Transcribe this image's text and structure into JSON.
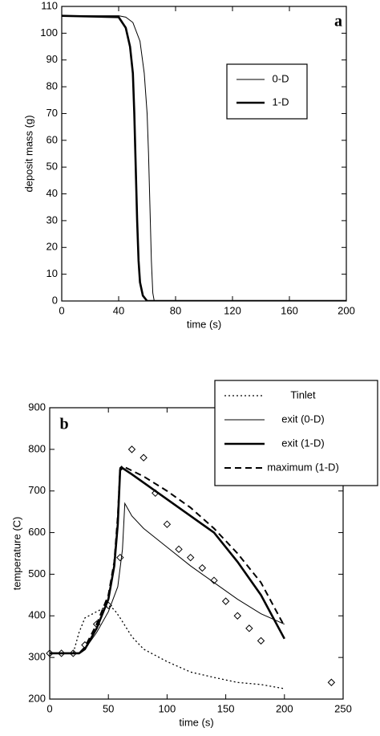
{
  "chart_data": [
    {
      "type": "line",
      "label": "a",
      "xlabel": "time (s)",
      "ylabel": "deposit mass (g)",
      "xlim": [
        0,
        200
      ],
      "xticks": [
        0,
        40,
        80,
        120,
        160,
        200
      ],
      "ylim": [
        0,
        110
      ],
      "yticks": [
        0,
        10,
        20,
        30,
        40,
        50,
        60,
        70,
        80,
        90,
        100,
        110
      ],
      "legend": "upper right",
      "series": [
        {
          "name": "0-D",
          "color": "#000000",
          "width": 1,
          "dash": "solid",
          "x": [
            0,
            40,
            45,
            50,
            55,
            58,
            60,
            61,
            62,
            63,
            64,
            65,
            200
          ],
          "values": [
            106.5,
            106.5,
            106,
            104,
            97,
            85,
            70,
            55,
            35,
            15,
            3,
            0,
            0
          ]
        },
        {
          "name": "1-D",
          "color": "#000000",
          "width": 2.6,
          "dash": "solid",
          "x": [
            0,
            40,
            45,
            48,
            50,
            51,
            52,
            53,
            54,
            55,
            57,
            60,
            200
          ],
          "values": [
            106.5,
            106,
            102,
            95,
            85,
            70,
            50,
            30,
            15,
            7,
            2,
            0,
            0
          ]
        }
      ]
    },
    {
      "type": "line",
      "label": "b",
      "xlabel": "time (s)",
      "ylabel": "temperature (C)",
      "xlim": [
        0,
        250
      ],
      "xticks": [
        0,
        50,
        100,
        150,
        200,
        250
      ],
      "ylim": [
        200,
        900
      ],
      "yticks": [
        200,
        300,
        400,
        500,
        600,
        700,
        800,
        900
      ],
      "legend": "upper right",
      "series": [
        {
          "name": "Tinlet",
          "color": "#000000",
          "width": 1.3,
          "dash": "dotted",
          "x": [
            0,
            20,
            25,
            30,
            40,
            50,
            55,
            60,
            70,
            80,
            100,
            120,
            140,
            160,
            180,
            190,
            200
          ],
          "values": [
            310,
            310,
            360,
            395,
            410,
            425,
            415,
            395,
            350,
            320,
            290,
            265,
            252,
            240,
            235,
            230,
            225
          ]
        },
        {
          "name": "exit (0-D)",
          "color": "#000000",
          "width": 1,
          "dash": "solid",
          "x": [
            0,
            25,
            30,
            40,
            50,
            58,
            62,
            64,
            70,
            80,
            100,
            120,
            140,
            160,
            180,
            200
          ],
          "values": [
            310,
            310,
            320,
            360,
            410,
            470,
            560,
            670,
            640,
            610,
            565,
            520,
            480,
            440,
            405,
            380
          ]
        },
        {
          "name": "exit (1-D)",
          "color": "#000000",
          "width": 2.6,
          "dash": "solid",
          "x": [
            0,
            25,
            30,
            40,
            50,
            55,
            58,
            60,
            62,
            70,
            80,
            100,
            120,
            140,
            160,
            180,
            200
          ],
          "values": [
            310,
            310,
            320,
            370,
            440,
            520,
            620,
            750,
            755,
            740,
            720,
            680,
            640,
            600,
            530,
            450,
            345
          ]
        },
        {
          "name": "maximum (1-D)",
          "color": "#000000",
          "width": 2,
          "dash": "dashed",
          "x": [
            0,
            25,
            30,
            40,
            50,
            55,
            58,
            60,
            62,
            80,
            100,
            120,
            140,
            160,
            180,
            200
          ],
          "values": [
            310,
            310,
            325,
            380,
            450,
            530,
            640,
            755,
            760,
            735,
            700,
            660,
            610,
            550,
            480,
            375
          ]
        },
        {
          "color": "#000000",
          "marker": "diamond",
          "x": [
            0,
            10,
            20,
            30,
            40,
            50,
            60,
            70,
            80,
            90,
            100,
            110,
            120,
            130,
            140,
            150,
            160,
            170,
            180,
            240
          ],
          "values": [
            310,
            310,
            310,
            330,
            380,
            425,
            540,
            800,
            780,
            695,
            620,
            560,
            540,
            515,
            485,
            435,
            400,
            370,
            340,
            240
          ]
        }
      ]
    }
  ]
}
